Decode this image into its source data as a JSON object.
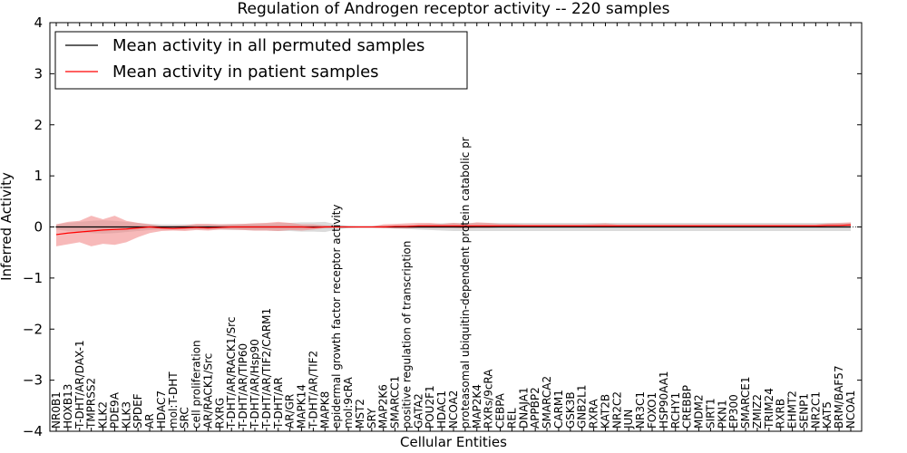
{
  "chart_data": {
    "type": "line",
    "title": "Regulation of Androgen receptor activity -- 220 samples",
    "xlabel": "Cellular Entities",
    "ylabel": "Inferred Activity",
    "ylim": [
      -4,
      4
    ],
    "yticks": [
      -4,
      -3,
      -2,
      -1,
      0,
      1,
      2,
      3,
      4
    ],
    "ytick_labels": [
      "−4",
      "−3",
      "−2",
      "−1",
      "0",
      "1",
      "2",
      "3",
      "4"
    ],
    "grid": false,
    "legend_position": "top-left",
    "categories": [
      "NR0B1",
      "HOXB13",
      "T-DHT/AR/DAX-1",
      "TMPRSS2",
      "KLK2",
      "PDE9A",
      "KLK3",
      "SPDEF",
      "AR",
      "HDAC7",
      "mol:T-DHT",
      "SRC",
      "cell proliferation",
      "AR/RACK1/Src",
      "RXRG",
      "T-DHT/AR/RACK1/Src",
      "T-DHT/AR/TIP60",
      "T-DHT/AR/Hsp90",
      "T-DHT/AR/TIF2/CARM1",
      "T-DHT/AR",
      "AR/GR",
      "MAPK14",
      "T-DHT/AR/TIF2",
      "MAPK8",
      "epidermal growth factor receptor activity",
      "mol:9cRA",
      "MST2",
      "SRY",
      "MAP2K6",
      "SMARCC1",
      "positive regulation of transcription",
      "GATA2",
      "POU2F1",
      "HDAC1",
      "NCOA2",
      "proteasomal ubiquitin-dependent protein catabolic pr",
      "MAP2K4",
      "RXRs/9cRA",
      "CEBPA",
      "REL",
      "DNAJA1",
      "APPBP2",
      "SMARCA2",
      "CARM1",
      "GSK3B",
      "GNB2L1",
      "RXRA",
      "KAT2B",
      "NR2C2",
      "JUN",
      "NR3C1",
      "FOXO1",
      "HSP90AA1",
      "RCHY1",
      "CREBBP",
      "MDM2",
      "SIRT1",
      "PKN1",
      "EP300",
      "SMARCE1",
      "ZMIZ2",
      "TRIM24",
      "RXRB",
      "EHMT2",
      "SENP1",
      "NR2C1",
      "KAT5",
      "BRM/BAF57",
      "NCOA1"
    ],
    "series": [
      {
        "name": "Mean activity in all permuted samples",
        "color": "#000000",
        "values": [
          0,
          0,
          0,
          0,
          0,
          0,
          0,
          0,
          0,
          0,
          0,
          0,
          0,
          0,
          0,
          0,
          0,
          0,
          0,
          0,
          0,
          0,
          0,
          0,
          0,
          0,
          0,
          0,
          0,
          0,
          0,
          0,
          0,
          0,
          0,
          0,
          0,
          0,
          0,
          0,
          0,
          0,
          0,
          0,
          0,
          0,
          0,
          0,
          0,
          0,
          0,
          0,
          0,
          0,
          0,
          0,
          0,
          0,
          0,
          0,
          0,
          0,
          0,
          0,
          0,
          0,
          0,
          0,
          0
        ],
        "band_lower": [
          -0.05,
          -0.08,
          -0.1,
          -0.12,
          -0.13,
          -0.12,
          -0.1,
          -0.08,
          -0.06,
          -0.05,
          -0.05,
          -0.05,
          -0.05,
          -0.05,
          -0.05,
          -0.06,
          -0.06,
          -0.07,
          -0.07,
          -0.08,
          -0.08,
          -0.09,
          -0.09,
          -0.1,
          -0.05,
          -0.02,
          -0.01,
          -0.01,
          -0.02,
          -0.03,
          -0.04,
          -0.05,
          -0.06,
          -0.07,
          -0.08,
          -0.08,
          -0.08,
          -0.08,
          -0.08,
          -0.08,
          -0.08,
          -0.08,
          -0.08,
          -0.08,
          -0.08,
          -0.08,
          -0.08,
          -0.08,
          -0.08,
          -0.08,
          -0.08,
          -0.08,
          -0.08,
          -0.08,
          -0.08,
          -0.08,
          -0.08,
          -0.08,
          -0.08,
          -0.08,
          -0.08,
          -0.08,
          -0.08,
          -0.08,
          -0.08,
          -0.08,
          -0.08,
          -0.08,
          -0.08
        ],
        "band_upper": [
          0.05,
          0.08,
          0.1,
          0.12,
          0.13,
          0.12,
          0.1,
          0.08,
          0.06,
          0.05,
          0.05,
          0.05,
          0.05,
          0.05,
          0.05,
          0.06,
          0.06,
          0.07,
          0.07,
          0.08,
          0.08,
          0.09,
          0.09,
          0.1,
          0.05,
          0.02,
          0.01,
          0.01,
          0.02,
          0.03,
          0.04,
          0.05,
          0.06,
          0.07,
          0.08,
          0.08,
          0.08,
          0.08,
          0.08,
          0.08,
          0.08,
          0.08,
          0.08,
          0.08,
          0.08,
          0.08,
          0.08,
          0.08,
          0.08,
          0.08,
          0.08,
          0.08,
          0.08,
          0.08,
          0.08,
          0.08,
          0.08,
          0.08,
          0.08,
          0.08,
          0.08,
          0.08,
          0.08,
          0.08,
          0.08,
          0.08,
          0.08,
          0.08,
          0.08
        ]
      },
      {
        "name": "Mean activity in patient samples",
        "color": "#ff0000",
        "values": [
          -0.15,
          -0.12,
          -0.1,
          -0.08,
          -0.06,
          -0.05,
          -0.04,
          -0.02,
          0,
          -0.02,
          -0.03,
          -0.02,
          -0.01,
          -0.02,
          -0.01,
          0,
          0,
          0,
          0,
          0,
          0,
          0,
          -0.01,
          0,
          0,
          0,
          0,
          0,
          0,
          0.01,
          0.01,
          0.02,
          0.02,
          0.02,
          0.02,
          0.02,
          0.02,
          0.02,
          0.02,
          0.02,
          0.02,
          0.02,
          0.02,
          0.02,
          0.02,
          0.02,
          0.02,
          0.02,
          0.02,
          0.02,
          0.02,
          0.02,
          0.02,
          0.02,
          0.02,
          0.02,
          0.02,
          0.02,
          0.02,
          0.02,
          0.02,
          0.02,
          0.02,
          0.02,
          0.02,
          0.02,
          0.03,
          0.03,
          0.04
        ],
        "band_lower": [
          -0.38,
          -0.34,
          -0.3,
          -0.38,
          -0.33,
          -0.35,
          -0.3,
          -0.2,
          -0.12,
          -0.08,
          -0.07,
          -0.08,
          -0.06,
          -0.07,
          -0.05,
          -0.05,
          -0.06,
          -0.07,
          -0.07,
          -0.08,
          -0.06,
          -0.07,
          -0.05,
          -0.02,
          -0.01,
          -0.005,
          0,
          -0.01,
          -0.02,
          -0.03,
          -0.03,
          -0.02,
          -0.02,
          -0.02,
          -0.02,
          -0.03,
          -0.02,
          -0.02,
          -0.01,
          -0.01,
          -0.01,
          -0.01,
          0,
          0,
          0,
          0,
          0,
          0,
          0,
          0,
          0,
          0,
          0,
          0,
          0,
          0,
          0,
          0,
          0,
          0,
          0,
          0,
          0,
          0,
          0,
          0,
          0,
          0,
          0
        ],
        "band_upper": [
          0.05,
          0.1,
          0.12,
          0.22,
          0.15,
          0.22,
          0.12,
          0.08,
          0.05,
          0.02,
          0.02,
          0.03,
          0.06,
          0.06,
          0.05,
          0.05,
          0.06,
          0.07,
          0.08,
          0.1,
          0.08,
          0.05,
          0.05,
          0.03,
          0.02,
          0.01,
          0.005,
          0.01,
          0.05,
          0.06,
          0.07,
          0.08,
          0.08,
          0.06,
          0.08,
          0.06,
          0.09,
          0.08,
          0.06,
          0.06,
          0.05,
          0.05,
          0.05,
          0.05,
          0.05,
          0.05,
          0.06,
          0.07,
          0.05,
          0.05,
          0.05,
          0.05,
          0.05,
          0.05,
          0.05,
          0.05,
          0.05,
          0.05,
          0.05,
          0.05,
          0.05,
          0.05,
          0.05,
          0.05,
          0.05,
          0.05,
          0.07,
          0.08,
          0.09
        ]
      }
    ]
  }
}
